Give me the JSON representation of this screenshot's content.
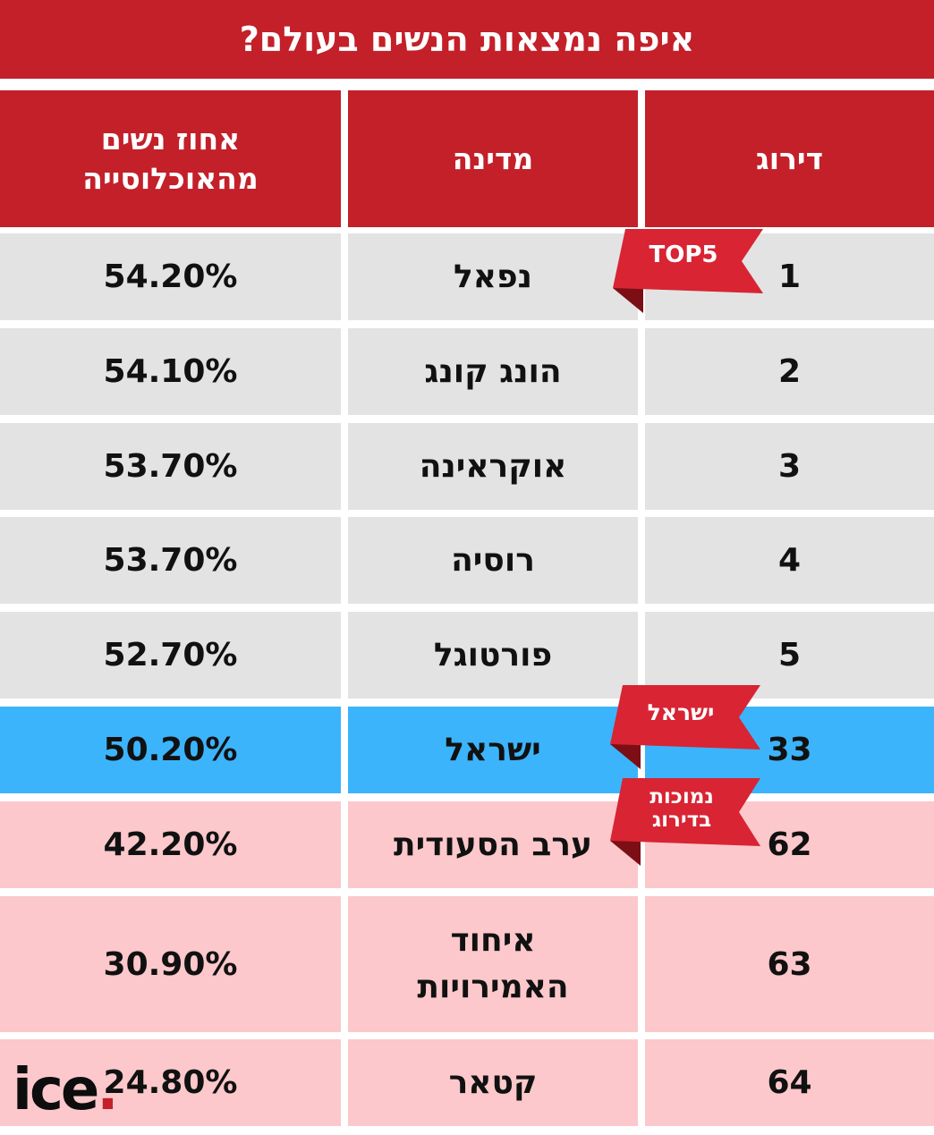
{
  "title": "איפה נמצאות הנשים בעולם?",
  "headers": {
    "rank": "דירוג",
    "country": "מדינה",
    "percent_line1": "אחוז נשים",
    "percent_line2": "מהאוכלוסייה"
  },
  "colors": {
    "accent_red": "#c3202a",
    "top5_row": "#e3e3e3",
    "israel_row": "#3cb4fb",
    "low_row": "#fcc8cb"
  },
  "ribbons": {
    "top5": "TOP5",
    "israel": "ישראל",
    "low_line1": "נמוכות",
    "low_line2": "בדירוג"
  },
  "logo": {
    "text": "ice",
    "dot": "."
  },
  "chart_data": {
    "type": "table",
    "title": "איפה נמצאות הנשים בעולם?",
    "columns": [
      "דירוג",
      "מדינה",
      "אחוז נשים מהאוכלוסייה"
    ],
    "rows": [
      {
        "rank": "1",
        "country": [
          "נפאל"
        ],
        "percent": "54.20%",
        "group": "top5"
      },
      {
        "rank": "2",
        "country": [
          "הונג קונג"
        ],
        "percent": "54.10%",
        "group": "top5"
      },
      {
        "rank": "3",
        "country": [
          "אוקראינה"
        ],
        "percent": "53.70%",
        "group": "top5"
      },
      {
        "rank": "4",
        "country": [
          "רוסיה"
        ],
        "percent": "53.70%",
        "group": "top5"
      },
      {
        "rank": "5",
        "country": [
          "פורטוגל"
        ],
        "percent": "52.70%",
        "group": "top5"
      },
      {
        "rank": "33",
        "country": [
          "ישראל"
        ],
        "percent": "50.20%",
        "group": "israel"
      },
      {
        "rank": "62",
        "country": [
          "ערב הסעודית"
        ],
        "percent": "42.20%",
        "group": "low"
      },
      {
        "rank": "63",
        "country": [
          "איחוד",
          "האמירויות"
        ],
        "percent": "30.90%",
        "group": "low"
      },
      {
        "rank": "64",
        "country": [
          "קטאר"
        ],
        "percent": "24.80%",
        "group": "low"
      }
    ]
  }
}
